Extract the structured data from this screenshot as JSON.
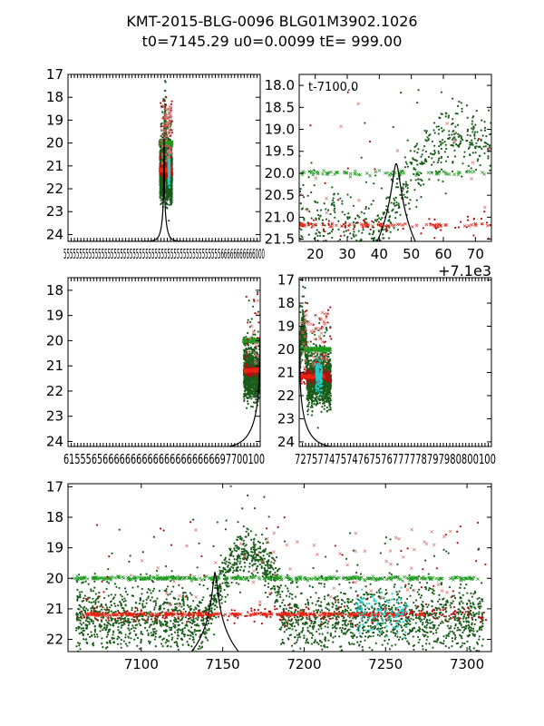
{
  "title_line1": "KMT-2015-BLG-0096 BLG01M3902.1026",
  "title_line2": "t0=7145.29 u0=0.0099 tE= 999.00",
  "colors": {
    "model": "#000000",
    "dark_green": "#1a5c1a",
    "green_x": "#1f9a1f",
    "red": "#b01010",
    "bright_red_x": "#ee2211",
    "cyan": "#22cccc",
    "pink_x": "#e07070"
  },
  "chart_data": [
    {
      "id": "top-left",
      "type": "scatter",
      "xlim": [
        5145,
        9145
      ],
      "ylim": [
        24.3,
        17.0
      ],
      "yticks": [
        "17",
        "18",
        "19",
        "20",
        "21",
        "22",
        "23",
        "24"
      ],
      "xtick_note": "dense overlapping tick labels (unreadable)",
      "xtick_text": "5555555555555555555555555555555555555555555555555566666666666000",
      "data_range_x": [
        7055,
        7315
      ]
    },
    {
      "id": "top-right",
      "type": "scatter",
      "annotation": "t-7100.0",
      "offset_label": "+7.1e3",
      "xlim": [
        15,
        75
      ],
      "ylim": [
        21.55,
        17.75
      ],
      "xticks": [
        "20",
        "30",
        "40",
        "50",
        "60",
        "70"
      ],
      "yticks": [
        "18.0",
        "18.5",
        "19.0",
        "19.5",
        "20.0",
        "20.5",
        "21.0",
        "21.5"
      ],
      "model_peak": {
        "x": 45.29,
        "mag": 19.78
      }
    },
    {
      "id": "middle-left",
      "type": "scatter",
      "xlim": [
        6145,
        7145
      ],
      "ylim": [
        24.2,
        17.5
      ],
      "yticks": [
        "18",
        "19",
        "20",
        "21",
        "22",
        "23",
        "24"
      ],
      "xtick_text": "615556566666666666666666666697700100"
    },
    {
      "id": "middle-right",
      "type": "scatter",
      "xlim": [
        7145,
        8145
      ],
      "ylim": [
        24.2,
        16.9
      ],
      "yticks": [
        "17",
        "18",
        "19",
        "20",
        "21",
        "22",
        "23",
        "24"
      ],
      "xtick_text": "72757747574767576777778797980800100"
    },
    {
      "id": "bottom",
      "type": "scatter",
      "xlim": [
        7055,
        7315
      ],
      "ylim": [
        22.4,
        16.9
      ],
      "xticks": [
        "7100",
        "7150",
        "7200",
        "7250",
        "7300"
      ],
      "yticks": [
        "17",
        "18",
        "19",
        "20",
        "21",
        "22"
      ],
      "model": {
        "t0": 7145.29,
        "u0": 0.0099,
        "tE": 999.0,
        "peak_mag": 19.78,
        "baseline_mag": 24.3
      },
      "series": [
        {
          "name": "dark-green-dots",
          "color": "#1a5c1a",
          "marker": "dot",
          "range_x": [
            7055,
            7310
          ],
          "typical_mag": [
            19.0,
            22.4
          ]
        },
        {
          "name": "green-x-baseline",
          "color": "#1f9a1f",
          "marker": "x",
          "mag": 20.0,
          "range_x": [
            7055,
            7310
          ]
        },
        {
          "name": "red-dots",
          "color": "#b01010",
          "marker": "dot",
          "mag": 21.2,
          "range_x": [
            7060,
            7315
          ]
        },
        {
          "name": "red-x-baseline",
          "color": "#ee2211",
          "marker": "x",
          "mag": 21.2,
          "range_x": [
            7065,
            7275
          ]
        },
        {
          "name": "cyan-points",
          "color": "#22cccc",
          "marker": "dot",
          "range_x": [
            7230,
            7265
          ],
          "typical_mag": [
            20.5,
            21.5
          ]
        }
      ]
    }
  ]
}
